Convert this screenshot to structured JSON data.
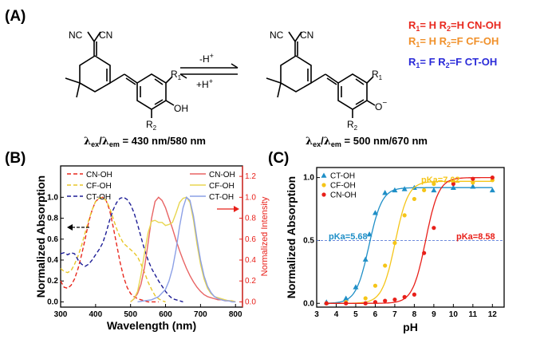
{
  "panels": {
    "A": {
      "label": "(A)"
    },
    "B": {
      "label": "(B)"
    },
    "C": {
      "label": "(C)"
    }
  },
  "scheme": {
    "left_groups": [
      "NC",
      "CN"
    ],
    "right_groups": [
      "NC",
      "CN"
    ],
    "left_subst": {
      "r1": "R",
      "r1_sub": "1",
      "oh": "OH",
      "r2": "R",
      "r2_sub": "2"
    },
    "right_subst": {
      "r1": "R",
      "r1_sub": "1",
      "o": "O",
      "o_charge": "−",
      "r2": "R",
      "r2_sub": "2"
    },
    "arrow_forward": {
      "text": "-H",
      "sup": "+"
    },
    "arrow_back": {
      "text": "+H",
      "sup": "+"
    },
    "left_lambda": {
      "ex": "ex",
      "em": "em",
      "value": "= 430 nm/580 nm"
    },
    "right_lambda": {
      "ex": "ex",
      "em": "em",
      "value": "= 500 nm/670 nm"
    },
    "substituent_legend": [
      {
        "r1": "R",
        "r1_sub": "1",
        "r1_val": "= H",
        "r2": "R",
        "r2_sub": "2",
        "r2_val": "=H",
        "name": "CN-OH",
        "color": "#e8281e"
      },
      {
        "r1": "R",
        "r1_sub": "1",
        "r1_val": "= H",
        "r2": "R",
        "r2_sub": "2",
        "r2_val": "=F",
        "name": "CF-OH",
        "color": "#f0902a"
      },
      {
        "r1": "R",
        "r1_sub": "1",
        "r1_val": "= F",
        "r2": "R",
        "r2_sub": "2",
        "r2_val": "=F",
        "name": "CT-OH",
        "color": "#2a2ad8"
      }
    ]
  },
  "chart_data": [
    {
      "type": "line",
      "panel": "B",
      "xlabel": "Wavelength (nm)",
      "ylabel_left": "Normalized Absorption",
      "ylabel_right": "Normalized Intensity",
      "xlim": [
        300,
        820
      ],
      "ylim_left": [
        -0.05,
        1.3
      ],
      "ylim_right": [
        -0.05,
        1.3
      ],
      "x_ticks": [
        "300",
        "400",
        "500",
        "600",
        "700",
        "800"
      ],
      "y_ticks_left": [
        "0.0",
        "0.2",
        "0.4",
        "0.6",
        "0.8",
        "1.0"
      ],
      "y_ticks_right": [
        "0.0",
        "0.2",
        "0.4",
        "0.6",
        "0.8",
        "1.0",
        "1.2"
      ],
      "legend_absorption": [
        "CN-OH",
        "CF-OH",
        "CT-OH"
      ],
      "legend_emission": [
        "CN-OH",
        "CF-OH",
        "CT-OH"
      ],
      "absorption_series": [
        {
          "name": "CN-OH",
          "color": "#e8281e",
          "x": [
            300,
            310,
            320,
            330,
            340,
            350,
            360,
            370,
            380,
            390,
            400,
            410,
            420,
            430,
            440,
            450,
            460,
            470,
            480,
            490,
            500,
            510,
            520,
            530,
            540,
            550,
            560,
            570,
            580
          ],
          "y": [
            0.2,
            0.14,
            0.13,
            0.16,
            0.22,
            0.32,
            0.45,
            0.6,
            0.76,
            0.88,
            0.96,
            0.99,
            1.0,
            0.97,
            0.88,
            0.72,
            0.55,
            0.38,
            0.24,
            0.14,
            0.08,
            0.05,
            0.03,
            0.02,
            0.01,
            0.0,
            0.0,
            0.0,
            0.0
          ]
        },
        {
          "name": "CF-OH",
          "color": "#e8c628",
          "x": [
            300,
            310,
            320,
            330,
            340,
            350,
            360,
            370,
            380,
            390,
            400,
            410,
            420,
            430,
            440,
            450,
            460,
            470,
            480,
            490,
            500,
            510,
            520,
            530,
            540,
            550,
            560,
            570,
            580,
            590,
            600
          ],
          "y": [
            0.32,
            0.29,
            0.28,
            0.3,
            0.36,
            0.44,
            0.54,
            0.66,
            0.78,
            0.88,
            0.96,
            0.99,
            1.0,
            0.97,
            0.9,
            0.8,
            0.7,
            0.62,
            0.56,
            0.53,
            0.5,
            0.47,
            0.43,
            0.36,
            0.28,
            0.19,
            0.12,
            0.06,
            0.03,
            0.01,
            0.0
          ]
        },
        {
          "name": "CT-OH",
          "color": "#1e1e96",
          "x": [
            300,
            310,
            320,
            330,
            340,
            350,
            360,
            370,
            380,
            390,
            400,
            410,
            420,
            430,
            440,
            450,
            460,
            470,
            480,
            490,
            500,
            510,
            520,
            530,
            540,
            550,
            560,
            570,
            580,
            590,
            600,
            610,
            620,
            630,
            640,
            650
          ],
          "y": [
            0.46,
            0.47,
            0.45,
            0.47,
            0.46,
            0.4,
            0.36,
            0.34,
            0.36,
            0.4,
            0.45,
            0.5,
            0.56,
            0.66,
            0.78,
            0.88,
            0.95,
            0.99,
            1.0,
            0.98,
            0.93,
            0.85,
            0.74,
            0.62,
            0.5,
            0.4,
            0.32,
            0.26,
            0.2,
            0.15,
            0.1,
            0.06,
            0.03,
            0.02,
            0.01,
            0.0
          ]
        }
      ],
      "emission_series": [
        {
          "name": "CN-OH",
          "color": "#e86464",
          "x": [
            500,
            510,
            520,
            530,
            540,
            550,
            560,
            570,
            580,
            590,
            600,
            610,
            620,
            630,
            640,
            650,
            660,
            670,
            680,
            690,
            700,
            710,
            720,
            730,
            740,
            750,
            760,
            770,
            780,
            790,
            800
          ],
          "y": [
            0.0,
            0.03,
            0.08,
            0.17,
            0.33,
            0.56,
            0.8,
            0.96,
            1.0,
            0.97,
            0.9,
            0.8,
            0.7,
            0.59,
            0.49,
            0.4,
            0.32,
            0.25,
            0.19,
            0.14,
            0.1,
            0.07,
            0.05,
            0.04,
            0.03,
            0.02,
            0.02,
            0.01,
            0.01,
            0.01,
            0.0
          ]
        },
        {
          "name": "CF-OH",
          "color": "#e8d650",
          "x": [
            500,
            510,
            520,
            530,
            540,
            550,
            560,
            570,
            580,
            590,
            600,
            610,
            620,
            630,
            640,
            650,
            660,
            670,
            680,
            690,
            700,
            710,
            720,
            730,
            740,
            750,
            760,
            770,
            780,
            790,
            800
          ],
          "y": [
            0.0,
            0.03,
            0.1,
            0.26,
            0.47,
            0.66,
            0.77,
            0.78,
            0.76,
            0.76,
            0.73,
            0.74,
            0.76,
            0.85,
            0.95,
            0.99,
            1.0,
            0.95,
            0.78,
            0.55,
            0.36,
            0.22,
            0.13,
            0.08,
            0.05,
            0.04,
            0.03,
            0.02,
            0.01,
            0.01,
            0.0
          ]
        },
        {
          "name": "CT-OH",
          "color": "#8ca0e6",
          "x": [
            520,
            540,
            560,
            580,
            600,
            610,
            620,
            630,
            640,
            650,
            660,
            670,
            680,
            690,
            700,
            710,
            720,
            730,
            740,
            750,
            760,
            770,
            780,
            790,
            800
          ],
          "y": [
            0.0,
            0.01,
            0.02,
            0.05,
            0.12,
            0.2,
            0.32,
            0.5,
            0.72,
            0.9,
            1.0,
            0.97,
            0.82,
            0.6,
            0.4,
            0.25,
            0.15,
            0.09,
            0.05,
            0.03,
            0.02,
            0.01,
            0.01,
            0.0,
            0.0
          ]
        }
      ]
    },
    {
      "type": "scatter",
      "panel": "C",
      "xlabel": "pH",
      "ylabel": "Normalized Absorption",
      "xlim": [
        3,
        12.6
      ],
      "ylim": [
        -0.03,
        1.08
      ],
      "x_ticks": [
        "3",
        "4",
        "5",
        "6",
        "7",
        "8",
        "9",
        "10",
        "11",
        "12"
      ],
      "y_ticks": [
        "0.0",
        "0.5",
        "1.0"
      ],
      "reference_line_y": 0.5,
      "series": [
        {
          "name": "CT-OH",
          "marker": "triangle",
          "color": "#1f8fc7",
          "pKa_label": "pKa=5.68",
          "pKa": 5.68,
          "top": 0.92,
          "x": [
            3.5,
            4.5,
            5.0,
            5.5,
            5.7,
            6.0,
            6.5,
            7.0,
            7.5,
            8.0,
            9.0,
            10.0,
            11.0,
            12.0
          ],
          "y": [
            0.01,
            0.04,
            0.13,
            0.35,
            0.55,
            0.72,
            0.88,
            0.9,
            0.91,
            0.92,
            0.9,
            0.92,
            0.93,
            0.9
          ]
        },
        {
          "name": "CF-OH",
          "marker": "circle",
          "color": "#f5c518",
          "pKa_label": "pKa=7.02",
          "pKa": 7.02,
          "top": 0.97,
          "x": [
            3.5,
            4.5,
            5.5,
            6.0,
            6.5,
            7.0,
            7.5,
            8.0,
            8.5,
            9.0,
            10.0,
            11.0,
            12.0
          ],
          "y": [
            0.0,
            0.01,
            0.04,
            0.14,
            0.3,
            0.48,
            0.7,
            0.83,
            0.9,
            0.95,
            0.97,
            0.96,
            0.98
          ]
        },
        {
          "name": "CN-OH",
          "marker": "circle",
          "color": "#e8201a",
          "pKa_label": "pKa=8.58",
          "pKa": 8.58,
          "top": 1.0,
          "x": [
            3.5,
            4.5,
            5.5,
            6.0,
            6.5,
            7.0,
            7.5,
            8.0,
            8.5,
            9.0,
            10.0,
            11.0,
            12.0
          ],
          "y": [
            0.0,
            0.0,
            0.0,
            0.01,
            0.02,
            0.03,
            0.05,
            0.07,
            0.4,
            0.6,
            0.95,
            0.99,
            1.0
          ]
        }
      ]
    }
  ]
}
